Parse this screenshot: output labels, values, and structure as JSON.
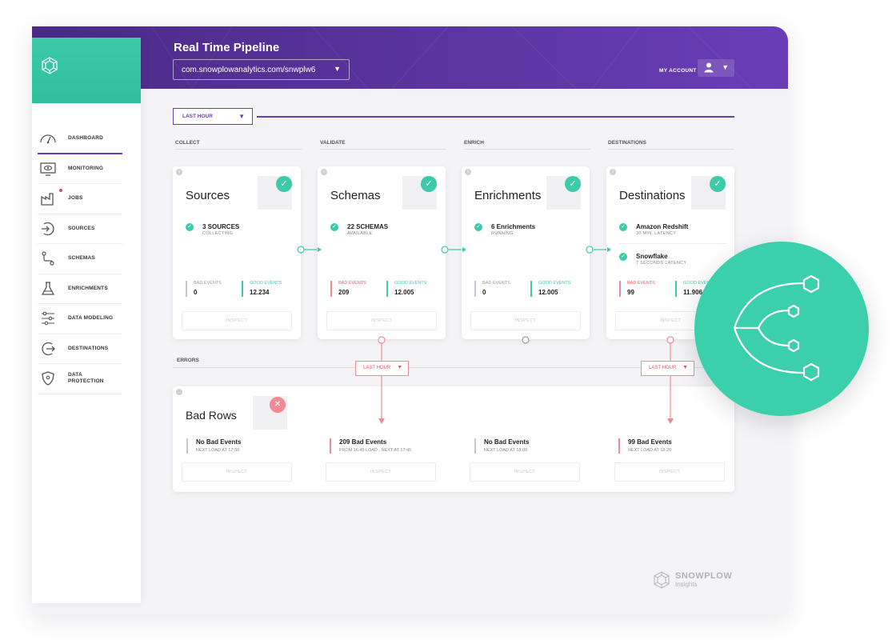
{
  "header": {
    "title": "Real Time Pipeline",
    "environment": "com.snowplowanalytics.com/snwplw6",
    "account_label": "MY ACCOUNT"
  },
  "sidebar": {
    "items": [
      {
        "label": "DASHBOARD",
        "icon": "gauge-icon",
        "active": true
      },
      {
        "label": "MONITORING",
        "icon": "monitor-eye-icon"
      },
      {
        "label": "JOBS",
        "icon": "factory-icon",
        "notification": true
      },
      {
        "label": "SOURCES",
        "icon": "sign-in-icon"
      },
      {
        "label": "SCHEMAS",
        "icon": "flow-icon"
      },
      {
        "label": "ENRICHMENTS",
        "icon": "flask-icon"
      },
      {
        "label": "DATA MODELING",
        "icon": "sliders-icon"
      },
      {
        "label": "DESTINATIONS",
        "icon": "sign-out-icon"
      },
      {
        "label": "DATA PROTECTION",
        "icon": "shield-icon"
      }
    ]
  },
  "time_range": "LAST HOUR",
  "columns": [
    "COLLECT",
    "VALIDATE",
    "ENRICH",
    "DESTINATIONS"
  ],
  "cards": [
    {
      "title": "Sources",
      "stats": [
        {
          "main": "3 SOURCES",
          "sub": "COLLECTING"
        }
      ],
      "bad_label": "BAD EVENTS",
      "bad_value": "0",
      "good_label": "GOOD EVENTS",
      "good_value": "12.234",
      "inspect": "INSPECT"
    },
    {
      "title": "Schemas",
      "stats": [
        {
          "main": "22 SCHEMAS",
          "sub": "AVAILABLE"
        }
      ],
      "bad_label": "BAD EVENTS",
      "bad_value": "209",
      "good_label": "GOOD EVENTS",
      "good_value": "12.005",
      "inspect": "INSPECT"
    },
    {
      "title": "Enrichments",
      "stats": [
        {
          "main": "6 Enrichments",
          "sub": "RUNNING"
        }
      ],
      "bad_label": "BAD EVENTS",
      "bad_value": "0",
      "good_label": "GOOD EVENTS",
      "good_value": "12.005",
      "inspect": "INSPECT"
    },
    {
      "title": "Destinations",
      "stats": [
        {
          "main": "Amazon Redshift",
          "sub": "30 MIN. LATENCY"
        },
        {
          "main": "Snowflake",
          "sub": "7 SECONDS LATENCY"
        }
      ],
      "bad_label": "BAD EVENTS",
      "bad_value": "99",
      "good_label": "GOOD EVENTS",
      "good_value": "11.906",
      "inspect": "INSPECT"
    }
  ],
  "errors": {
    "heading": "ERRORS",
    "title": "Bad Rows",
    "range_label": "LAST HOUR",
    "items": [
      {
        "main": "No Bad Events",
        "sub": "NEXT LOAD AT 17:30"
      },
      {
        "main": "209 Bad Events",
        "sub": "FROM 16:45 LOAD , NEXT AT 17:45"
      },
      {
        "main": "No Bad Events",
        "sub": "NEXT LOAD AT 18:00"
      },
      {
        "main": "99 Bad Events",
        "sub": "NEXT LOAD AT 18:20"
      }
    ],
    "inspect": "INSPECT"
  },
  "brand": {
    "name": "SNOWPLOW",
    "product": "Insights"
  },
  "colors": {
    "header": "#5c36a3",
    "accent": "#3ccaa8",
    "bad": "#f08b96",
    "purple": "#6a3db6"
  }
}
